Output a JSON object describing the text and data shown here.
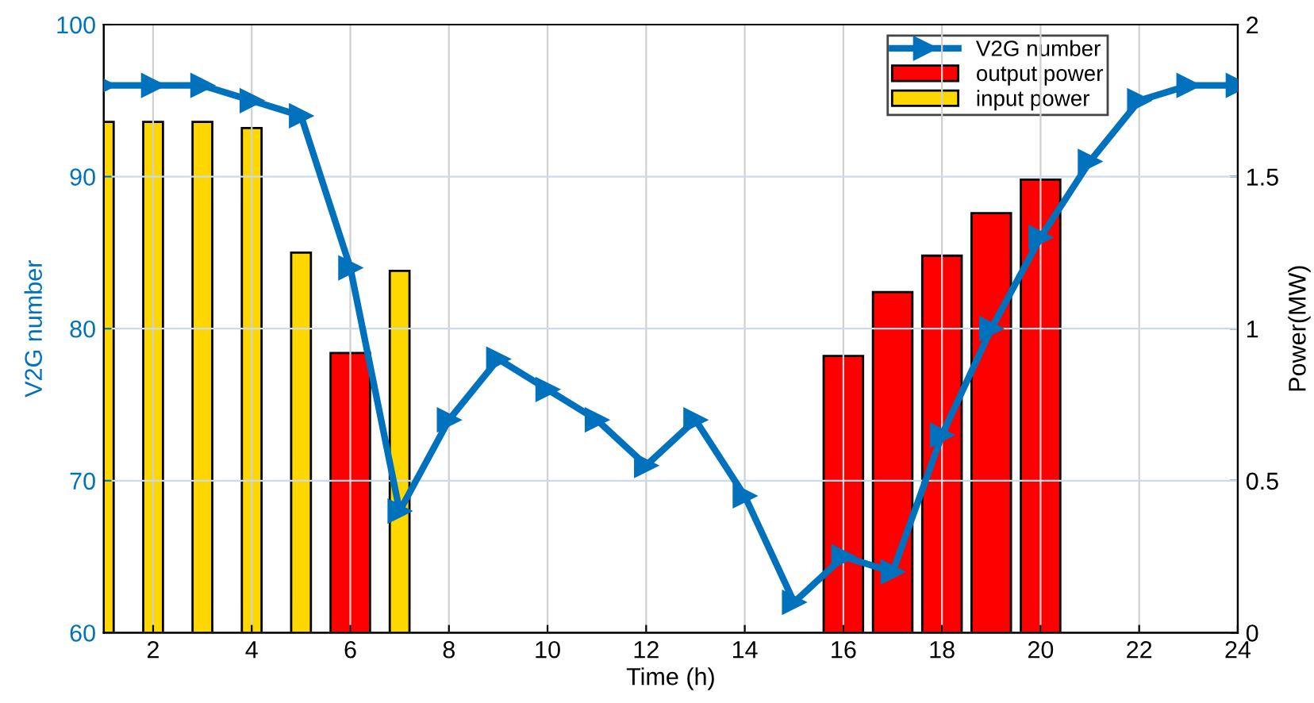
{
  "chart_data": {
    "type": "line",
    "xlabel": "Time (h)",
    "ylabel": "V2G number",
    "y2label": "Power(MW)",
    "x": [
      1,
      2,
      3,
      4,
      5,
      6,
      7,
      8,
      9,
      10,
      11,
      12,
      13,
      14,
      15,
      16,
      17,
      18,
      19,
      20,
      21,
      22,
      23,
      24
    ],
    "series": [
      {
        "name": "V2G number",
        "axis": "y",
        "color": "#0072bd",
        "marker": "triangle",
        "values": [
          96,
          96,
          96,
          95,
          94,
          84,
          68,
          74,
          78,
          76,
          74,
          71,
          74,
          69,
          62,
          65,
          64,
          73,
          80,
          86,
          91,
          95,
          96,
          96
        ]
      },
      {
        "name": "output power",
        "type": "bar",
        "axis": "y2",
        "color": "#ff0000",
        "values": [
          null,
          null,
          null,
          null,
          null,
          0.92,
          null,
          null,
          null,
          null,
          null,
          null,
          null,
          null,
          null,
          0.91,
          1.12,
          1.24,
          1.38,
          1.49,
          null,
          null,
          null,
          null
        ]
      },
      {
        "name": "input power",
        "type": "bar",
        "axis": "y2",
        "color": "#ffd700",
        "values": [
          1.68,
          1.68,
          1.68,
          1.66,
          1.25,
          null,
          1.19,
          null,
          null,
          null,
          null,
          null,
          null,
          null,
          null,
          null,
          null,
          null,
          null,
          null,
          null,
          null,
          null,
          null
        ]
      }
    ],
    "xlim": [
      1,
      24
    ],
    "xticks": [
      2,
      4,
      6,
      8,
      10,
      12,
      14,
      16,
      18,
      20,
      22,
      24
    ],
    "ylim": [
      60,
      100
    ],
    "yticks": [
      60,
      70,
      80,
      90,
      100
    ],
    "y2lim": [
      0,
      2
    ],
    "y2ticks": [
      0,
      0.5,
      1,
      1.5,
      2
    ],
    "grid": true,
    "legend": "top right",
    "line_style": "solid"
  }
}
